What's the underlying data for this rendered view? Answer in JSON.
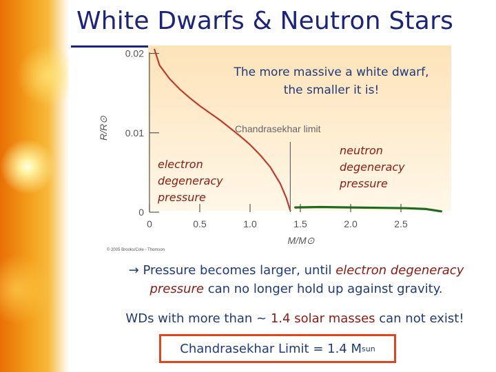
{
  "slide": {
    "title": "White Dwarfs & Neutron Stars",
    "bullet_arrow": "→",
    "bullet_pre": "Pressure becomes larger, until ",
    "bullet_em1": "electron degeneracy",
    "bullet_em2": "pressure",
    "bullet_post": " can no longer hold up against gravity.",
    "wd_pre": "WDs with more than ~ ",
    "wd_em": "1.4 solar masses",
    "wd_post": " can not exist!",
    "limit_label": "Chandrasekhar Limit = 1.4 M",
    "limit_sub": "sun"
  },
  "chart_data": {
    "type": "line",
    "title": "",
    "xlabel": "M/M⊙",
    "ylabel": "R/R⊙",
    "xlim": [
      0,
      3.0
    ],
    "ylim": [
      0,
      0.021
    ],
    "x_ticks": [
      "0",
      "0.5",
      "1.0",
      "1.5",
      "2.0",
      "2.5"
    ],
    "y_ticks": [
      "0",
      "0.01",
      "0.02"
    ],
    "series": [
      {
        "color": "#c0392b",
        "x": [
          0.05,
          0.1,
          0.2,
          0.3,
          0.4,
          0.5,
          0.6,
          0.7,
          0.8,
          0.9,
          1.0,
          1.1,
          1.2,
          1.3,
          1.36,
          1.4
        ],
        "y": [
          0.0205,
          0.0185,
          0.0168,
          0.0155,
          0.0144,
          0.0134,
          0.0125,
          0.0116,
          0.0106,
          0.0096,
          0.0085,
          0.0072,
          0.0057,
          0.0036,
          0.0018,
          0.0002
        ]
      },
      {
        "color": "#1e6b1e",
        "x": [
          1.45,
          1.7,
          2.0,
          2.3,
          2.55,
          2.75,
          2.9
        ],
        "y": [
          0.0006,
          0.00065,
          0.0006,
          0.00055,
          0.0005,
          0.0004,
          0.0001
        ]
      }
    ],
    "annotations": {
      "chandrasekhar": "Chandrasekhar limit",
      "callout": "The more massive a white dwarf, the smaller it is!",
      "electron_lines": [
        "electron",
        "degeneracy",
        "pressure"
      ],
      "neutron_lines": [
        "neutron",
        "degeneracy",
        "pressure"
      ],
      "copyright": "© 2005 Brooks/Cole - Thomson"
    },
    "colors": {
      "panel_top": "#fde3b8",
      "panel_bottom": "#fff7e8",
      "callout_text": "#1f3a7a",
      "label_text": "#8b1a12",
      "axis": "#555555"
    }
  }
}
